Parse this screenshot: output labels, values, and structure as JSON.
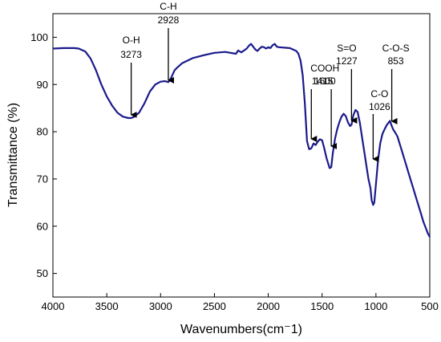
{
  "chart_data": {
    "type": "line",
    "title": "",
    "xlabel": "Wavenumbers(cm⁻1)",
    "ylabel": "Transmittance (%)",
    "xlim": [
      4000,
      500
    ],
    "ylim": [
      45,
      105
    ],
    "x_ticks": [
      4000,
      3500,
      3000,
      2500,
      2000,
      1500,
      1000,
      500
    ],
    "y_ticks": [
      50,
      60,
      70,
      80,
      90,
      100
    ],
    "grid": false,
    "line_color": "#1a1a8c",
    "series": [
      {
        "x": [
          4000,
          3900,
          3800,
          3760,
          3700,
          3650,
          3600,
          3550,
          3500,
          3450,
          3400,
          3350,
          3300,
          3273,
          3250,
          3200,
          3150,
          3100,
          3050,
          3000,
          2960,
          2928,
          2900,
          2870,
          2850,
          2800,
          2700,
          2600,
          2500,
          2400,
          2300,
          2280,
          2250,
          2200,
          2180,
          2160,
          2140,
          2120,
          2100,
          2080,
          2060,
          2040,
          2020,
          2000,
          1980,
          1960,
          1940,
          1920,
          1900,
          1850,
          1800,
          1760,
          1740,
          1720,
          1700,
          1680,
          1660,
          1640,
          1620,
          1600,
          1580,
          1560,
          1540,
          1520,
          1500,
          1480,
          1460,
          1440,
          1430,
          1415,
          1400,
          1380,
          1360,
          1340,
          1320,
          1300,
          1280,
          1260,
          1240,
          1227,
          1210,
          1190,
          1170,
          1150,
          1130,
          1110,
          1090,
          1070,
          1050,
          1040,
          1026,
          1015,
          1000,
          980,
          960,
          940,
          920,
          900,
          880,
          870,
          853,
          840,
          820,
          800,
          780,
          760,
          740,
          720,
          700,
          680,
          660,
          640,
          620,
          600,
          580,
          560,
          540,
          520,
          500
        ],
        "y": [
          97.6,
          97.7,
          97.7,
          97.6,
          97.0,
          95.5,
          93.0,
          90.0,
          87.5,
          85.5,
          84.0,
          83.2,
          82.9,
          82.9,
          83.1,
          84.0,
          86.0,
          88.5,
          90.0,
          90.6,
          90.7,
          90.5,
          91.5,
          93.0,
          93.5,
          94.5,
          95.6,
          96.2,
          96.7,
          96.9,
          96.5,
          97.2,
          96.8,
          97.6,
          98.2,
          98.6,
          98.0,
          97.4,
          97.1,
          97.6,
          98.0,
          97.9,
          97.6,
          97.9,
          97.7,
          98.3,
          98.6,
          98.0,
          97.9,
          97.8,
          97.7,
          97.3,
          97.1,
          96.5,
          95.0,
          92.0,
          86.0,
          78.0,
          76.3,
          76.5,
          77.5,
          77.2,
          77.9,
          78.4,
          78.2,
          76.5,
          74.5,
          73.0,
          72.3,
          72.5,
          75.5,
          78.5,
          80.5,
          82.0,
          83.2,
          83.8,
          83.3,
          82.0,
          81.2,
          81.5,
          83.5,
          84.6,
          84.2,
          82.0,
          79.0,
          76.0,
          73.0,
          70.0,
          68.0,
          65.5,
          64.5,
          65.0,
          69.0,
          74.0,
          77.5,
          79.5,
          80.5,
          81.4,
          82.0,
          82.3,
          81.2,
          80.5,
          79.8,
          79.0,
          77.5,
          76.0,
          74.5,
          73.0,
          71.5,
          70.0,
          68.5,
          67.0,
          65.5,
          64.0,
          62.5,
          61.0,
          59.8,
          58.6,
          57.7
        ]
      }
    ],
    "annotations": [
      {
        "name": "oh-peak",
        "group": "O-H",
        "value": "3273",
        "x": 3273,
        "y": 82.9
      },
      {
        "name": "ch-peak",
        "group": "C-H",
        "value": "2928",
        "x": 2928,
        "y": 90.5
      },
      {
        "name": "cooh-peak",
        "group": "COOH",
        "value": "1600",
        "x": 1600,
        "y": 76.5
      },
      {
        "name": "cooh-1415-peak",
        "group": "",
        "value": "1415",
        "x": 1415,
        "y": 72.5
      },
      {
        "name": "so-peak",
        "group": "S=O",
        "value": "1227",
        "x": 1227,
        "y": 81.5
      },
      {
        "name": "co-peak",
        "group": "C-O",
        "value": "1026",
        "x": 1026,
        "y": 64.5
      },
      {
        "name": "cos-peak",
        "group": "C-O-S",
        "value": "853",
        "x": 853,
        "y": 81.2
      }
    ]
  }
}
